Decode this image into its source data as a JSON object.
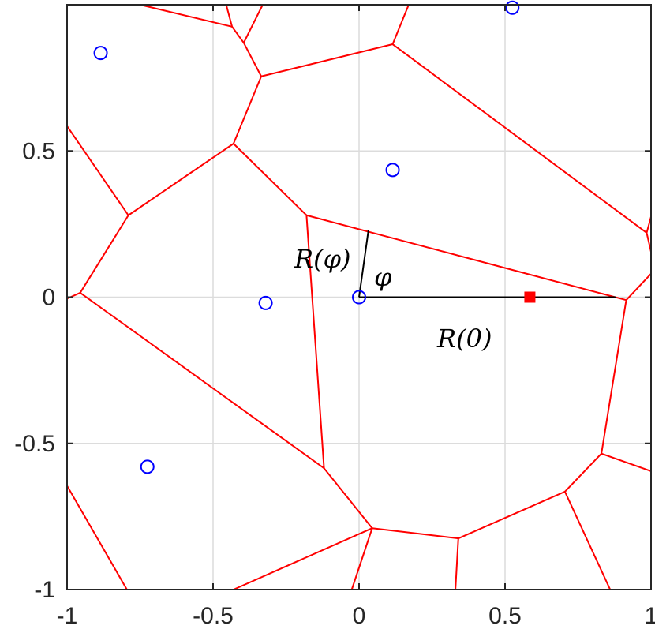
{
  "chart_data": {
    "type": "scatter",
    "title": "",
    "xlabel": "",
    "ylabel": "",
    "xlim": [
      -1,
      1
    ],
    "ylim": [
      -1,
      1
    ],
    "grid": true,
    "x_ticks": [
      -1,
      -0.5,
      0,
      0.5,
      1
    ],
    "y_ticks": [
      -1,
      -0.5,
      0,
      0.5
    ],
    "x_tick_labels": [
      "-1",
      "-0.5",
      "0",
      "0.5",
      "1"
    ],
    "y_tick_labels": [
      "-1",
      "-0.5",
      "0",
      "0.5"
    ],
    "colors": {
      "voronoi": "#ff0000",
      "sites": "#0000ff",
      "target": "#ff0000",
      "rays": "#000000",
      "grid": "#dcdcdc",
      "axes": "#262626"
    },
    "sites": [
      {
        "x": 0,
        "y": 0
      },
      {
        "x": -0.885,
        "y": 0.835
      },
      {
        "x": 0.525,
        "y": 0.99
      },
      {
        "x": 0.115,
        "y": 0.435
      },
      {
        "x": -0.32,
        "y": -0.02
      },
      {
        "x": -0.725,
        "y": -0.58
      }
    ],
    "target_point": {
      "x": 0.585,
      "y": 0
    },
    "voronoi_edges": [
      [
        [
          -0.75,
          1.0
        ],
        [
          -0.435,
          0.925
        ]
      ],
      [
        [
          -0.455,
          1.0
        ],
        [
          -0.435,
          0.925
        ]
      ],
      [
        [
          -0.435,
          0.925
        ],
        [
          -0.395,
          0.87
        ]
      ],
      [
        [
          -0.33,
          1.0
        ],
        [
          -0.395,
          0.87
        ]
      ],
      [
        [
          -0.395,
          0.87
        ],
        [
          -0.335,
          0.755
        ]
      ],
      [
        [
          0.17,
          1.0
        ],
        [
          0.115,
          0.865
        ]
      ],
      [
        [
          0.115,
          0.865
        ],
        [
          -0.335,
          0.755
        ]
      ],
      [
        [
          -0.335,
          0.755
        ],
        [
          -0.43,
          0.525
        ]
      ],
      [
        [
          -0.43,
          0.525
        ],
        [
          -0.79,
          0.28
        ]
      ],
      [
        [
          -1.0,
          0.585
        ],
        [
          -0.79,
          0.28
        ]
      ],
      [
        [
          -0.79,
          0.28
        ],
        [
          -0.955,
          0.015
        ]
      ],
      [
        [
          -1.0,
          -0.005
        ],
        [
          -0.955,
          0.015
        ]
      ],
      [
        [
          -0.43,
          0.525
        ],
        [
          -0.18,
          0.28
        ]
      ],
      [
        [
          0.115,
          0.865
        ],
        [
          0.985,
          0.22
        ]
      ],
      [
        [
          1.0,
          0.275
        ],
        [
          0.985,
          0.22
        ]
      ],
      [
        [
          0.985,
          0.22
        ],
        [
          1.0,
          0.155
        ]
      ],
      [
        [
          -0.18,
          0.28
        ],
        [
          0.915,
          -0.01
        ]
      ],
      [
        [
          -0.18,
          0.28
        ],
        [
          -0.12,
          -0.585
        ]
      ],
      [
        [
          -0.955,
          0.015
        ],
        [
          -0.12,
          -0.585
        ]
      ],
      [
        [
          -0.12,
          -0.585
        ],
        [
          0.045,
          -0.79
        ]
      ],
      [
        [
          0.045,
          -0.79
        ],
        [
          0.34,
          -0.825
        ]
      ],
      [
        [
          0.34,
          -0.825
        ],
        [
          0.705,
          -0.665
        ]
      ],
      [
        [
          0.705,
          -0.665
        ],
        [
          0.83,
          -0.535
        ]
      ],
      [
        [
          0.83,
          -0.535
        ],
        [
          0.915,
          -0.01
        ]
      ],
      [
        [
          0.915,
          -0.01
        ],
        [
          1.0,
          0.08
        ]
      ],
      [
        [
          0.83,
          -0.535
        ],
        [
          1.0,
          -0.595
        ]
      ],
      [
        [
          0.705,
          -0.665
        ],
        [
          0.86,
          -1.0
        ]
      ],
      [
        [
          0.34,
          -0.825
        ],
        [
          0.33,
          -1.0
        ]
      ],
      [
        [
          0.045,
          -0.79
        ],
        [
          -0.025,
          -1.0
        ]
      ],
      [
        [
          0.045,
          -0.79
        ],
        [
          -0.43,
          -1.0
        ]
      ],
      [
        [
          -1.0,
          -0.645
        ],
        [
          -0.795,
          -1.0
        ]
      ]
    ],
    "rays": [
      {
        "label": "R(0)",
        "from": {
          "x": 0,
          "y": 0
        },
        "to": {
          "x": 0.88,
          "y": 0
        }
      },
      {
        "label": "R(φ)",
        "from": {
          "x": 0,
          "y": 0
        },
        "to": {
          "x": 0.032,
          "y": 0.228
        }
      }
    ],
    "annotations": {
      "r_zero": "R(0)",
      "r_phi": "R(φ)",
      "phi": "φ"
    }
  }
}
